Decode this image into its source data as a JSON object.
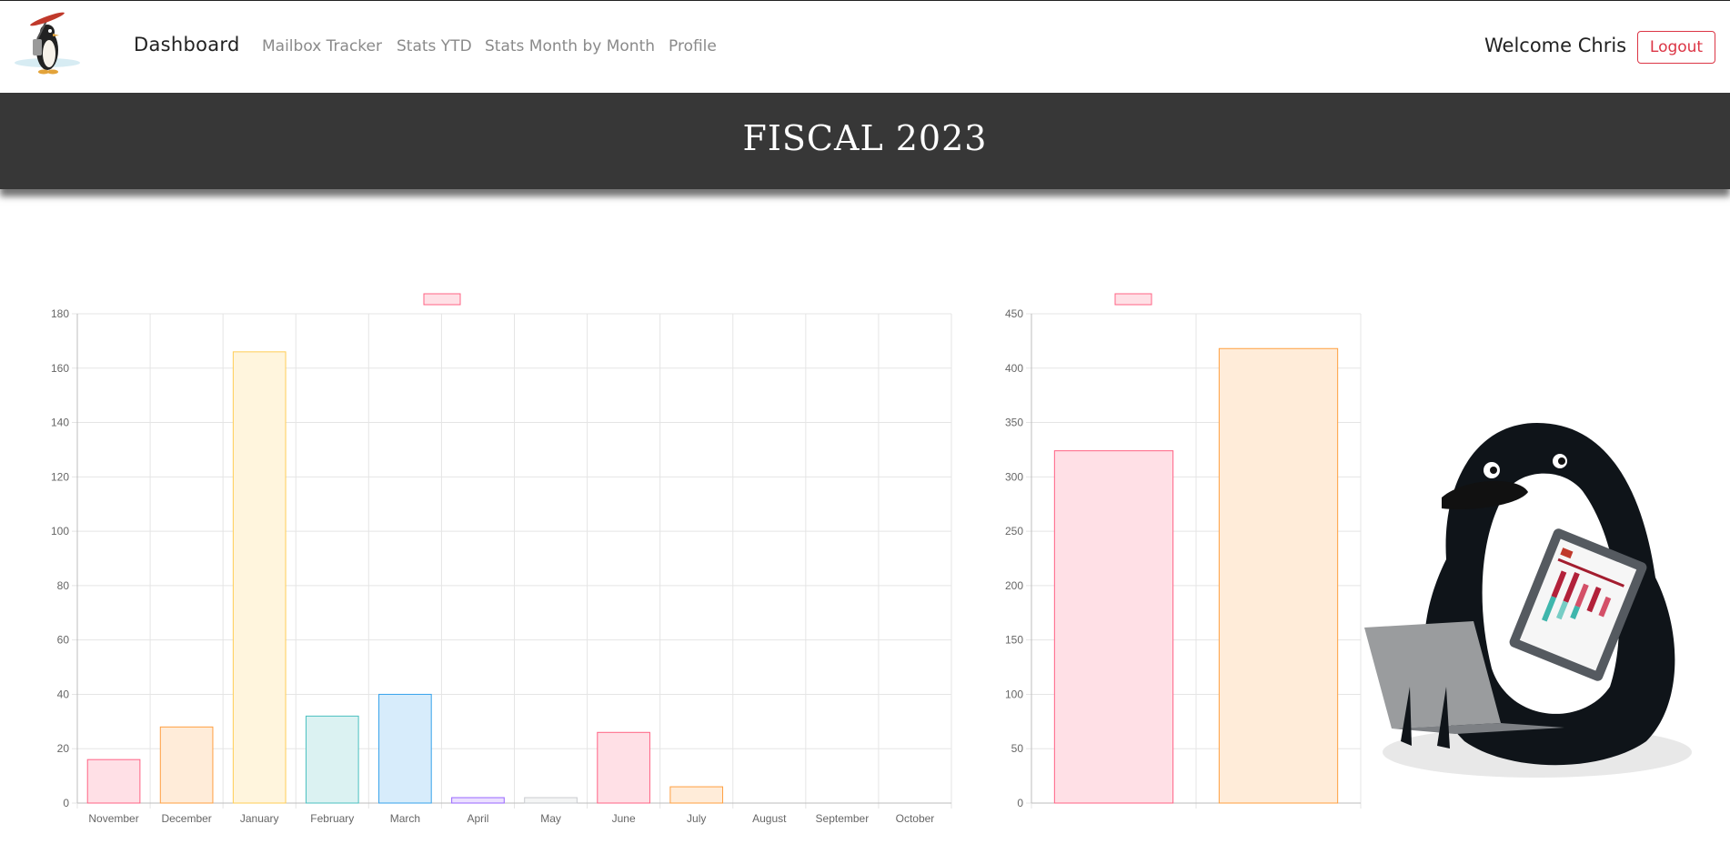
{
  "nav": {
    "brand": "Dashboard",
    "links": [
      {
        "label": "Mailbox Tracker"
      },
      {
        "label": "Stats YTD"
      },
      {
        "label": "Stats Month by Month"
      },
      {
        "label": "Profile"
      }
    ],
    "welcome": "Welcome Chris",
    "logout_label": "Logout"
  },
  "hero": {
    "title": "FISCAL 2023"
  },
  "chart_data": [
    {
      "type": "bar",
      "categories": [
        "November",
        "December",
        "January",
        "February",
        "March",
        "April",
        "May",
        "June",
        "July",
        "August",
        "September",
        "October"
      ],
      "values": [
        16,
        28,
        166,
        32,
        40,
        2,
        2,
        26,
        6,
        0,
        0,
        0
      ],
      "ylim": [
        0,
        180
      ],
      "yticks": [
        0,
        20,
        40,
        60,
        80,
        100,
        120,
        140,
        160,
        180
      ],
      "grid": true,
      "legend": "top-center",
      "colors": {
        "fill": [
          "#ffe0e6",
          "#ffecd9",
          "#fff5dd",
          "#dbf2f2",
          "#d7ecfb",
          "#ebe0ff",
          "#f4f5f5",
          "#ffe0e6",
          "#ffecd9",
          "#fff5dd",
          "#dbf2f2",
          "#d7ecfb"
        ],
        "stroke": [
          "#ff6384",
          "#ff9f40",
          "#ffcd56",
          "#4bc0c0",
          "#36a2eb",
          "#9966ff",
          "#c9cbcf",
          "#ff6384",
          "#ff9f40",
          "#ffcd56",
          "#4bc0c0",
          "#36a2eb"
        ]
      }
    },
    {
      "type": "bar",
      "categories": [
        "",
        ""
      ],
      "values": [
        324,
        418
      ],
      "ylim": [
        0,
        450
      ],
      "yticks": [
        0,
        50,
        100,
        150,
        200,
        250,
        300,
        350,
        400,
        450
      ],
      "grid": true,
      "legend": "top-center",
      "colors": {
        "fill": [
          "#ffe0e6",
          "#ffecd9"
        ],
        "stroke": [
          "#ff6384",
          "#ff9f40"
        ]
      }
    }
  ]
}
